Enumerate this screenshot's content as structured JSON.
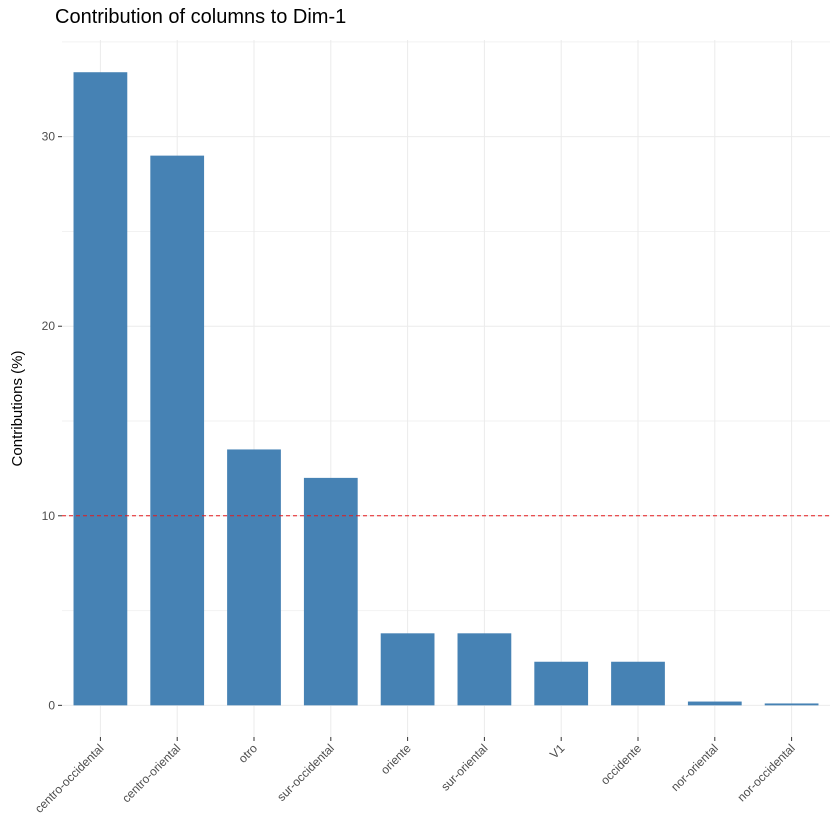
{
  "chart_data": {
    "type": "bar",
    "title": "Contribution of columns to Dim-1",
    "xlabel": "",
    "ylabel": "Contributions (%)",
    "categories": [
      "centro-occidental",
      "centro-oriental",
      "otro",
      "sur-occidental",
      "oriente",
      "sur-oriental",
      "V1",
      "occidente",
      "nor-oriental",
      "nor-occidental"
    ],
    "values": [
      33.4,
      29.0,
      13.5,
      12.0,
      3.8,
      3.8,
      2.3,
      2.3,
      0.2,
      0.1
    ],
    "yticks": [
      0,
      10,
      20,
      30
    ],
    "ylim": [
      -1.67,
      35.1
    ],
    "reference_line": 10,
    "grid": true,
    "colors": {
      "bar": "#4682b4",
      "reference_line": "#e31a1c"
    }
  }
}
